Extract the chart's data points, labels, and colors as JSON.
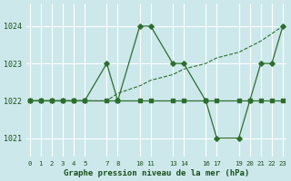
{
  "bg_color": "#cce8eb",
  "grid_color": "#ffffff",
  "line_color": "#2d6e2d",
  "line1_x": [
    0,
    1,
    2,
    3,
    4,
    5,
    7,
    8,
    10,
    11,
    13,
    14,
    16,
    17,
    19,
    20,
    21,
    22,
    23
  ],
  "line1_y": [
    1022,
    1022,
    1022,
    1022,
    1022,
    1022,
    1022,
    1022,
    1022,
    1022,
    1022,
    1022,
    1022,
    1022,
    1022,
    1022,
    1022,
    1022,
    1022
  ],
  "line2_x": [
    0,
    1,
    2,
    3,
    4,
    5,
    7,
    8,
    10,
    11,
    13,
    14,
    16,
    17,
    19,
    20,
    21,
    22,
    23
  ],
  "line2_y": [
    1022,
    1022,
    1022,
    1022,
    1022,
    1022,
    1023,
    1022,
    1024,
    1024,
    1023,
    1023,
    1022,
    1021,
    1021,
    1022,
    1023,
    1023,
    1024
  ],
  "line3_x": [
    0,
    5,
    7,
    8,
    10,
    11,
    13,
    14,
    16,
    17,
    19,
    20,
    21,
    22,
    23
  ],
  "line3_y": [
    1022,
    1022,
    1022,
    1022.2,
    1022.4,
    1022.55,
    1022.7,
    1022.85,
    1023.0,
    1023.15,
    1023.3,
    1023.45,
    1023.6,
    1023.8,
    1024
  ],
  "xtick_positions": [
    0,
    1,
    2,
    3,
    4,
    5,
    7,
    8,
    10,
    11,
    13,
    14,
    16,
    17,
    19,
    20,
    21,
    22,
    23
  ],
  "xlabels": [
    "0",
    "1",
    "2",
    "3",
    "4",
    "5",
    "7",
    "8",
    "10",
    "11",
    "13",
    "14",
    "16",
    "17",
    "19",
    "20",
    "21",
    "22",
    "23"
  ],
  "yticks": [
    1021,
    1022,
    1023,
    1024
  ],
  "ylim": [
    1020.5,
    1024.6
  ],
  "xlim": [
    -0.3,
    23.3
  ],
  "xlabel": "Graphe pression niveau de la mer (hPa)",
  "text_color": "#1a4f1a"
}
